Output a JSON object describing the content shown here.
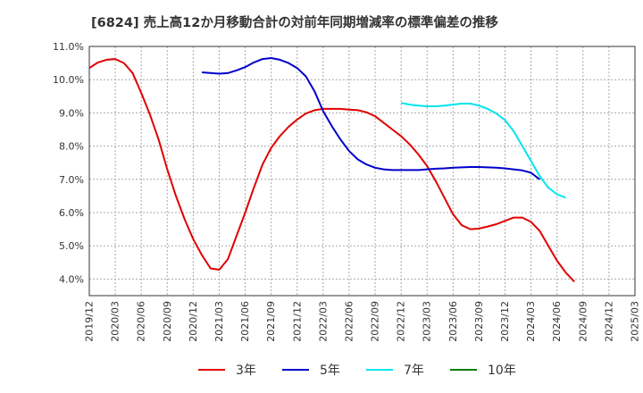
{
  "chart_data": {
    "type": "line",
    "title": "[6824]  売上高12か月移動合計の対前年同期増減率の標準偏差の推移",
    "xlabel": "",
    "ylabel": "",
    "ylim": [
      3.5,
      11.0
    ],
    "y_ticks": [
      "4.0%",
      "5.0%",
      "6.0%",
      "7.0%",
      "8.0%",
      "9.0%",
      "10.0%",
      "11.0%"
    ],
    "y_tick_values": [
      4,
      5,
      6,
      7,
      8,
      9,
      10,
      11
    ],
    "x_ticks": [
      "2019/12",
      "2020/03",
      "2020/06",
      "2020/09",
      "2020/12",
      "2021/03",
      "2021/06",
      "2021/09",
      "2021/12",
      "2022/03",
      "2022/06",
      "2022/09",
      "2022/12",
      "2023/03",
      "2023/06",
      "2023/09",
      "2023/12",
      "2024/03",
      "2024/06",
      "2024/09",
      "2024/12",
      "2025/03"
    ],
    "grid": true,
    "legend_position": "bottom",
    "series": [
      {
        "name": "3年",
        "color": "#e00000",
        "points": [
          [
            "2019/12",
            10.35
          ],
          [
            "2020/01",
            10.52
          ],
          [
            "2020/02",
            10.6
          ],
          [
            "2020/03",
            10.62
          ],
          [
            "2020/04",
            10.5
          ],
          [
            "2020/05",
            10.2
          ],
          [
            "2020/06",
            9.6
          ],
          [
            "2020/07",
            8.95
          ],
          [
            "2020/08",
            8.2
          ],
          [
            "2020/09",
            7.3
          ],
          [
            "2020/10",
            6.5
          ],
          [
            "2020/11",
            5.8
          ],
          [
            "2020/12",
            5.2
          ],
          [
            "2021/01",
            4.72
          ],
          [
            "2021/02",
            4.32
          ],
          [
            "2021/03",
            4.28
          ],
          [
            "2021/04",
            4.6
          ],
          [
            "2021/05",
            5.3
          ],
          [
            "2021/06",
            6.0
          ],
          [
            "2021/07",
            6.75
          ],
          [
            "2021/08",
            7.45
          ],
          [
            "2021/09",
            7.95
          ],
          [
            "2021/10",
            8.3
          ],
          [
            "2021/11",
            8.58
          ],
          [
            "2021/12",
            8.8
          ],
          [
            "2022/01",
            8.98
          ],
          [
            "2022/02",
            9.08
          ],
          [
            "2022/03",
            9.12
          ],
          [
            "2022/04",
            9.12
          ],
          [
            "2022/05",
            9.12
          ],
          [
            "2022/06",
            9.1
          ],
          [
            "2022/07",
            9.08
          ],
          [
            "2022/08",
            9.02
          ],
          [
            "2022/09",
            8.9
          ],
          [
            "2022/10",
            8.7
          ],
          [
            "2022/11",
            8.5
          ],
          [
            "2022/12",
            8.3
          ],
          [
            "2023/01",
            8.05
          ],
          [
            "2023/02",
            7.75
          ],
          [
            "2023/03",
            7.4
          ],
          [
            "2023/04",
            6.95
          ],
          [
            "2023/05",
            6.45
          ],
          [
            "2023/06",
            5.95
          ],
          [
            "2023/07",
            5.62
          ],
          [
            "2023/08",
            5.5
          ],
          [
            "2023/09",
            5.52
          ],
          [
            "2023/10",
            5.58
          ],
          [
            "2023/11",
            5.65
          ],
          [
            "2023/12",
            5.75
          ],
          [
            "2024/01",
            5.85
          ],
          [
            "2024/02",
            5.85
          ],
          [
            "2024/03",
            5.72
          ],
          [
            "2024/04",
            5.45
          ],
          [
            "2024/05",
            5.0
          ],
          [
            "2024/06",
            4.55
          ],
          [
            "2024/07",
            4.2
          ],
          [
            "2024/08",
            3.92
          ]
        ]
      },
      {
        "name": "5年",
        "color": "#0000cc",
        "points": [
          [
            "2021/01",
            10.22
          ],
          [
            "2021/02",
            10.2
          ],
          [
            "2021/03",
            10.18
          ],
          [
            "2021/04",
            10.2
          ],
          [
            "2021/05",
            10.28
          ],
          [
            "2021/06",
            10.38
          ],
          [
            "2021/07",
            10.52
          ],
          [
            "2021/08",
            10.62
          ],
          [
            "2021/09",
            10.65
          ],
          [
            "2021/10",
            10.6
          ],
          [
            "2021/11",
            10.5
          ],
          [
            "2021/12",
            10.35
          ],
          [
            "2022/01",
            10.1
          ],
          [
            "2022/02",
            9.65
          ],
          [
            "2022/03",
            9.05
          ],
          [
            "2022/04",
            8.6
          ],
          [
            "2022/05",
            8.2
          ],
          [
            "2022/06",
            7.85
          ],
          [
            "2022/07",
            7.6
          ],
          [
            "2022/08",
            7.45
          ],
          [
            "2022/09",
            7.35
          ],
          [
            "2022/10",
            7.3
          ],
          [
            "2022/11",
            7.28
          ],
          [
            "2022/12",
            7.28
          ],
          [
            "2023/01",
            7.28
          ],
          [
            "2023/02",
            7.28
          ],
          [
            "2023/03",
            7.3
          ],
          [
            "2023/04",
            7.32
          ],
          [
            "2023/05",
            7.33
          ],
          [
            "2023/06",
            7.35
          ],
          [
            "2023/07",
            7.36
          ],
          [
            "2023/08",
            7.37
          ],
          [
            "2023/09",
            7.37
          ],
          [
            "2023/10",
            7.36
          ],
          [
            "2023/11",
            7.35
          ],
          [
            "2023/12",
            7.33
          ],
          [
            "2024/01",
            7.3
          ],
          [
            "2024/02",
            7.27
          ],
          [
            "2024/03",
            7.2
          ],
          [
            "2024/04",
            7.0
          ]
        ]
      },
      {
        "name": "7年",
        "color": "#00e5ee",
        "points": [
          [
            "2022/12",
            9.3
          ],
          [
            "2023/01",
            9.25
          ],
          [
            "2023/02",
            9.22
          ],
          [
            "2023/03",
            9.2
          ],
          [
            "2023/04",
            9.2
          ],
          [
            "2023/05",
            9.22
          ],
          [
            "2023/06",
            9.25
          ],
          [
            "2023/07",
            9.28
          ],
          [
            "2023/08",
            9.28
          ],
          [
            "2023/09",
            9.22
          ],
          [
            "2023/10",
            9.12
          ],
          [
            "2023/11",
            8.98
          ],
          [
            "2023/12",
            8.78
          ],
          [
            "2024/01",
            8.45
          ],
          [
            "2024/02",
            8.0
          ],
          [
            "2024/03",
            7.55
          ],
          [
            "2024/04",
            7.1
          ],
          [
            "2024/05",
            6.75
          ],
          [
            "2024/06",
            6.55
          ],
          [
            "2024/07",
            6.45
          ]
        ]
      },
      {
        "name": "10年",
        "color": "#008000",
        "points": []
      }
    ]
  }
}
